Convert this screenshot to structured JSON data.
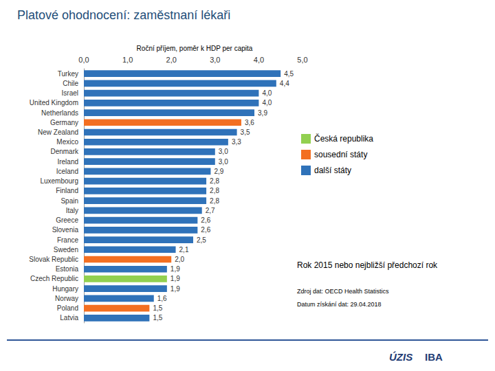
{
  "chart_data": {
    "type": "bar",
    "title": "Platové ohodnocení: zaměstnaní lékaři",
    "subtitle": "Roční příjem, poměr k HDP per capita",
    "orientation": "horizontal",
    "categories": [
      "Turkey",
      "Chile",
      "Israel",
      "United Kingdom",
      "Netherlands",
      "Germany",
      "New Zealand",
      "Mexico",
      "Denmark",
      "Ireland",
      "Iceland",
      "Luxembourg",
      "Finland",
      "Spain",
      "Italy",
      "Greece",
      "Slovenia",
      "France",
      "Sweden",
      "Slovak Republic",
      "Estonia",
      "Czech Republic",
      "Hungary",
      "Norway",
      "Poland",
      "Latvia"
    ],
    "series": [
      {
        "name": "Česká republika",
        "color": "#92d050",
        "values": [
          null,
          null,
          null,
          null,
          null,
          null,
          null,
          null,
          null,
          null,
          null,
          null,
          null,
          null,
          null,
          null,
          null,
          null,
          null,
          null,
          null,
          1.9,
          null,
          null,
          null,
          null
        ],
        "value_labels": [
          null,
          null,
          null,
          null,
          null,
          null,
          null,
          null,
          null,
          null,
          null,
          null,
          null,
          null,
          null,
          null,
          null,
          null,
          null,
          null,
          null,
          "1,9",
          null,
          null,
          null,
          null
        ]
      },
      {
        "name": "sousední státy",
        "color": "#f36f21",
        "values": [
          null,
          null,
          null,
          null,
          null,
          3.6,
          null,
          null,
          null,
          null,
          null,
          null,
          null,
          null,
          null,
          null,
          null,
          null,
          null,
          2.0,
          null,
          null,
          null,
          null,
          1.5,
          null
        ],
        "value_labels": [
          null,
          null,
          null,
          null,
          null,
          "3,6",
          null,
          null,
          null,
          null,
          null,
          null,
          null,
          null,
          null,
          null,
          null,
          null,
          null,
          "2,0",
          null,
          null,
          null,
          null,
          "1,5",
          null
        ]
      },
      {
        "name": "další státy",
        "color": "#2f72b9",
        "values": [
          4.5,
          4.4,
          4.0,
          4.0,
          3.9,
          null,
          3.5,
          3.3,
          3.0,
          3.0,
          2.9,
          2.8,
          2.8,
          2.8,
          2.7,
          2.6,
          2.6,
          2.5,
          2.1,
          null,
          1.9,
          null,
          1.9,
          1.6,
          null,
          1.5
        ],
        "value_labels": [
          "4,5",
          "4,4",
          "4,0",
          "4,0",
          "3,9",
          null,
          "3,5",
          "3,3",
          "3,0",
          "3,0",
          "2,9",
          "2,8",
          "2,8",
          "2,8",
          "2,7",
          "2,6",
          "2,6",
          "2,5",
          "2,1",
          null,
          "1,9",
          null,
          "1,9",
          "1,6",
          null,
          "1,5"
        ]
      }
    ],
    "xlim": [
      0,
      5
    ],
    "xticks": [
      {
        "value": 0,
        "label": "0,0"
      },
      {
        "value": 1,
        "label": "1,0"
      },
      {
        "value": 2,
        "label": "2,0"
      },
      {
        "value": 3,
        "label": "3,0"
      },
      {
        "value": 4,
        "label": "4,0"
      },
      {
        "value": 5,
        "label": "5,0"
      }
    ],
    "grid": false,
    "legend": "right",
    "data_labels": true,
    "annotations": [
      "Rok 2015 nebo nejbližší předchozí rok",
      "Zdroj dat: OECD Health Statistics",
      "Datum získání dat: 29.04.2018"
    ],
    "logos": [
      "ÚZIS",
      "IBA"
    ]
  }
}
